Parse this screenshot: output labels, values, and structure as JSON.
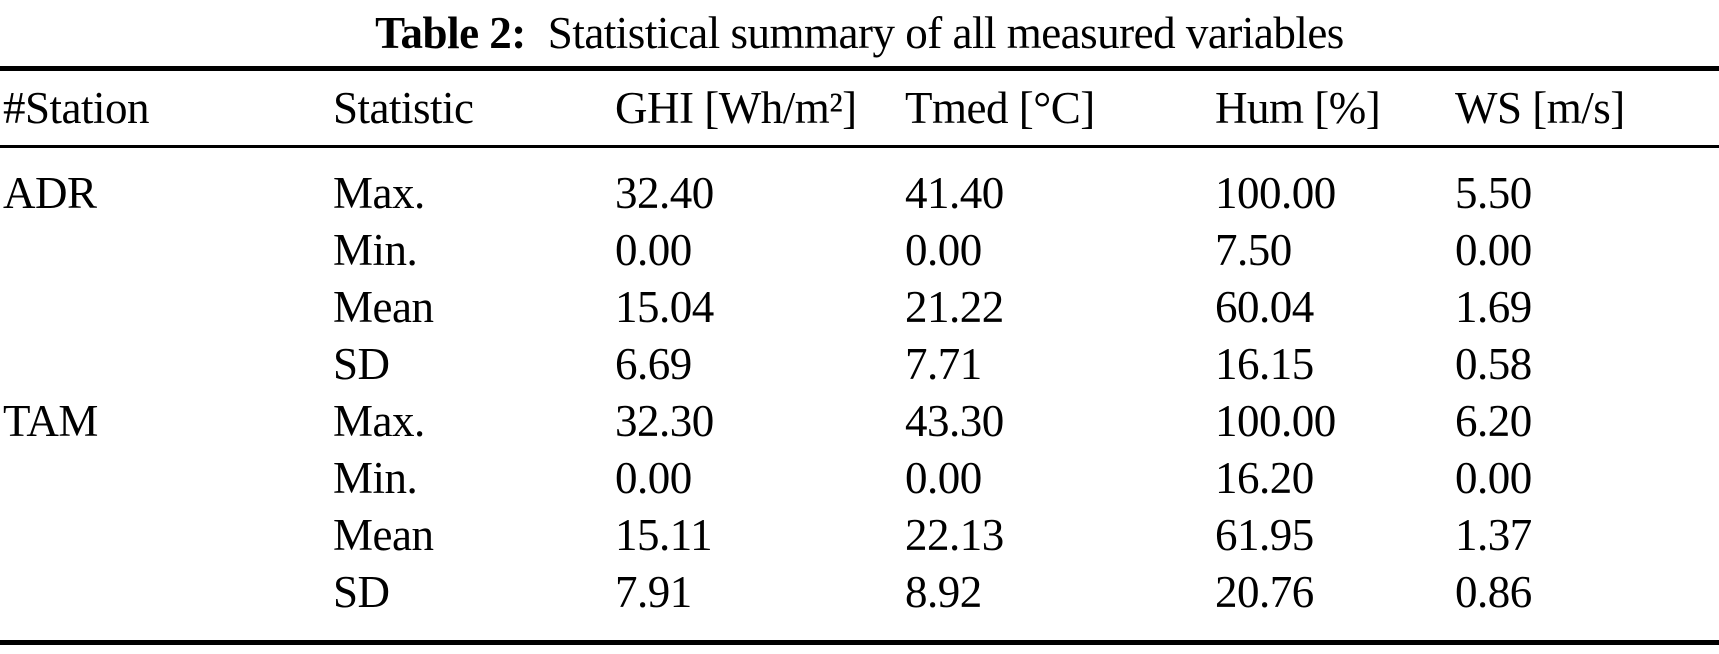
{
  "caption": {
    "label": "Table 2:",
    "text": "Statistical summary of all measured variables"
  },
  "chart_data": {
    "type": "table",
    "title": "Table 2: Statistical summary of all measured variables",
    "columns": [
      "#Station",
      "Statistic",
      "GHI [Wh/m²]",
      "Tmed [°C]",
      "Hum [%]",
      "WS [m/s]"
    ],
    "rows": [
      [
        "ADR",
        "Max.",
        "32.40",
        "41.40",
        "100.00",
        "5.50"
      ],
      [
        "",
        "Min.",
        "0.00",
        "0.00",
        "7.50",
        "0.00"
      ],
      [
        "",
        "Mean",
        "15.04",
        "21.22",
        "60.04",
        "1.69"
      ],
      [
        "",
        "SD",
        "6.69",
        "7.71",
        "16.15",
        "0.58"
      ],
      [
        "TAM",
        "Max.",
        "32.30",
        "43.30",
        "100.00",
        "6.20"
      ],
      [
        "",
        "Min.",
        "0.00",
        "0.00",
        "16.20",
        "0.00"
      ],
      [
        "",
        "Mean",
        "15.11",
        "22.13",
        "61.95",
        "1.37"
      ],
      [
        "",
        "SD",
        "7.91",
        "8.92",
        "20.76",
        "0.86"
      ]
    ],
    "stations": [
      "ADR",
      "TAM"
    ],
    "statistics": [
      "Max.",
      "Min.",
      "Mean",
      "SD"
    ],
    "layout": {
      "text_color": "#000000",
      "background": "#ffffff",
      "rule_color": "#000000"
    }
  }
}
